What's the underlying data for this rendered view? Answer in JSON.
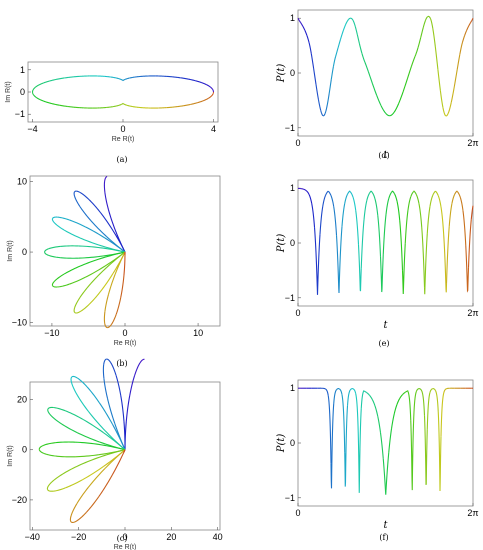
{
  "chart_data": [
    {
      "id": "a",
      "type": "line",
      "caption": "(a)",
      "xlabel": "Re R(t)",
      "ylabel": "Im R(t)",
      "xlim": [
        -4.2,
        4.2
      ],
      "ylim": [
        -1.35,
        1.35
      ],
      "xticks": [
        {
          "v": -4,
          "label": "−4"
        },
        {
          "v": 0,
          "label": "0"
        },
        {
          "v": 4,
          "label": "4"
        }
      ],
      "yticks": [
        {
          "v": -1,
          "label": "−1"
        },
        {
          "v": 0,
          "label": "0"
        },
        {
          "v": 1,
          "label": "1"
        }
      ],
      "curve": "lobes",
      "petals": 2,
      "amplitude": 4,
      "phase_deg": 0,
      "tmax_frac": 1.0
    },
    {
      "id": "b",
      "type": "line",
      "caption": "(b)",
      "xlabel": "Re R(t)",
      "ylabel": "Im R(t)",
      "xlim": [
        -13,
        13
      ],
      "ylim": [
        -10.5,
        10.8
      ],
      "xticks": [
        {
          "v": -10,
          "label": "−10"
        },
        {
          "v": 0,
          "label": "0"
        },
        {
          "v": 10,
          "label": "10"
        }
      ],
      "yticks": [
        {
          "v": -10,
          "label": "−10"
        },
        {
          "v": 0,
          "label": "0"
        },
        {
          "v": 10,
          "label": "10"
        }
      ],
      "curve": "rose",
      "petals": 7,
      "amplitude": 11,
      "phase_deg": 90,
      "tmax_frac": 0.93
    },
    {
      "id": "c",
      "type": "line",
      "caption": "(c)",
      "xlabel": "Re R(t)",
      "ylabel": "Im R(t)",
      "xlim": [
        -41,
        41
      ],
      "ylim": [
        -32,
        27
      ],
      "xticks": [
        {
          "v": -40,
          "label": "−40"
        },
        {
          "v": -20,
          "label": "−20"
        },
        {
          "v": 0,
          "label": "0"
        },
        {
          "v": 20,
          "label": "20"
        },
        {
          "v": 40,
          "label": "40"
        }
      ],
      "yticks": [
        {
          "v": -20,
          "label": "−20"
        },
        {
          "v": 0,
          "label": "0"
        },
        {
          "v": 20,
          "label": "20"
        }
      ],
      "curve": "rose",
      "petals": 7,
      "amplitude": 37,
      "phase_deg": 64,
      "tmax_frac": 0.93
    },
    {
      "id": "d",
      "type": "line",
      "caption": "(d)",
      "xlabel": "t",
      "ylabel": "P(t)",
      "xlim": [
        0,
        6.2832
      ],
      "ylim": [
        -1.15,
        1.15
      ],
      "xticks": [
        {
          "v": 0,
          "label": "0"
        },
        {
          "v": 6.2832,
          "label": "2π"
        }
      ],
      "yticks": [
        {
          "v": -1,
          "label": "−1"
        },
        {
          "v": 0,
          "label": "0"
        },
        {
          "v": 1,
          "label": "1"
        }
      ],
      "x": [
        0,
        0.4,
        0.9,
        1.35,
        1.9,
        2.4,
        3.3,
        4.2,
        4.75,
        5.3,
        5.9,
        6.2832
      ],
      "y": [
        1.0,
        0.55,
        -0.78,
        0.3,
        1.0,
        0.2,
        -0.78,
        0.3,
        1.0,
        -0.78,
        0.55,
        1.0
      ]
    },
    {
      "id": "e",
      "type": "line",
      "caption": "(e)",
      "xlabel": "t",
      "ylabel": "P(t)",
      "xlim": [
        0,
        6.2832
      ],
      "ylim": [
        -1.15,
        1.15
      ],
      "xticks": [
        {
          "v": 0,
          "label": "0"
        },
        {
          "v": 6.2832,
          "label": "2π"
        }
      ],
      "yticks": [
        {
          "v": -1,
          "label": "−1"
        },
        {
          "v": 0,
          "label": "0"
        },
        {
          "v": 1,
          "label": "1"
        }
      ],
      "dips_x": [
        0.7,
        1.47,
        2.24,
        3.01,
        3.78,
        4.55,
        5.32,
        6.09
      ],
      "dip_min": -0.95,
      "sharpness": 6
    },
    {
      "id": "f",
      "type": "line",
      "caption": "(f)",
      "xlabel": "t",
      "ylabel": "P(t)",
      "xlim": [
        0,
        6.2832
      ],
      "ylim": [
        -1.15,
        1.15
      ],
      "xticks": [
        {
          "v": 0,
          "label": "0"
        },
        {
          "v": 6.2832,
          "label": "2π"
        }
      ],
      "yticks": [
        {
          "v": -1,
          "label": "−1"
        },
        {
          "v": 0,
          "label": "0"
        },
        {
          "v": 1,
          "label": "1"
        }
      ],
      "dips_x": [
        1.2,
        1.7,
        2.2,
        3.15,
        4.1,
        4.6,
        5.1
      ],
      "dip_min": -0.95,
      "dip_width": [
        0.06,
        0.06,
        0.06,
        0.3,
        0.06,
        0.06,
        0.06
      ]
    }
  ]
}
